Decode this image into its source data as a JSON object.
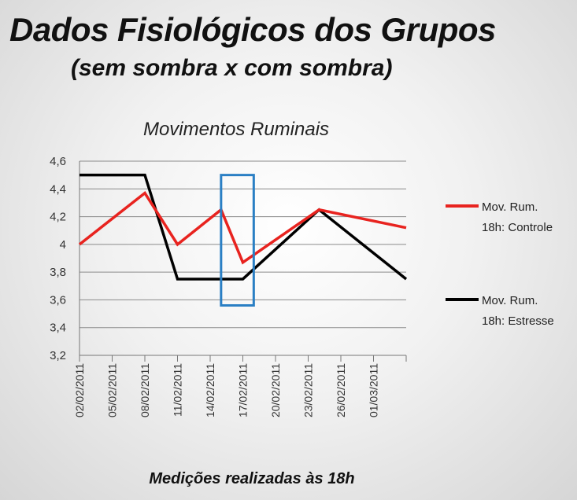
{
  "header": {
    "title": "Dados Fisiológicos dos Grupos",
    "subtitle": "(sem sombra x com sombra)"
  },
  "footer": {
    "caption": "Medições realizadas às 18h"
  },
  "chart_data": {
    "type": "line",
    "title": "Movimentos Ruminais",
    "xlabel": "",
    "ylabel": "",
    "ylim": [
      3.2,
      4.6
    ],
    "yticks": [
      "3,2",
      "3,4",
      "3,6",
      "3,8",
      "4",
      "4,2",
      "4,4",
      "4,6"
    ],
    "x_tick_labels": [
      "02/02/2011",
      "05/02/2011",
      "08/02/2011",
      "11/02/2011",
      "14/02/2011",
      "17/02/2011",
      "20/02/2011",
      "23/02/2011",
      "26/02/2011",
      "01/03/2011"
    ],
    "grid": true,
    "legend_position": "right",
    "series": [
      {
        "name": "Mov. Rum. 18h: Controle",
        "color": "#e8231f",
        "points": [
          {
            "x": "02/02/2011",
            "y": 4.0
          },
          {
            "x": "08/02/2011",
            "y": 4.37
          },
          {
            "x": "11/02/2011",
            "y": 4.0
          },
          {
            "x": "15/02/2011",
            "y": 4.25
          },
          {
            "x": "17/02/2011",
            "y": 3.87
          },
          {
            "x": "24/02/2011",
            "y": 4.25
          },
          {
            "x": "04/03/2011",
            "y": 4.12
          }
        ]
      },
      {
        "name": "Mov. Rum. 18h: Estresse",
        "color": "#000000",
        "points": [
          {
            "x": "02/02/2011",
            "y": 4.5
          },
          {
            "x": "08/02/2011",
            "y": 4.5
          },
          {
            "x": "11/02/2011",
            "y": 3.75
          },
          {
            "x": "17/02/2011",
            "y": 3.75
          },
          {
            "x": "24/02/2011",
            "y": 4.25
          },
          {
            "x": "04/03/2011",
            "y": 3.75
          }
        ]
      }
    ],
    "highlight": {
      "color": "#2a7fc4",
      "x_range": [
        "15/02/2011",
        "18/02/2011"
      ],
      "y_range": [
        3.56,
        4.5
      ]
    }
  }
}
